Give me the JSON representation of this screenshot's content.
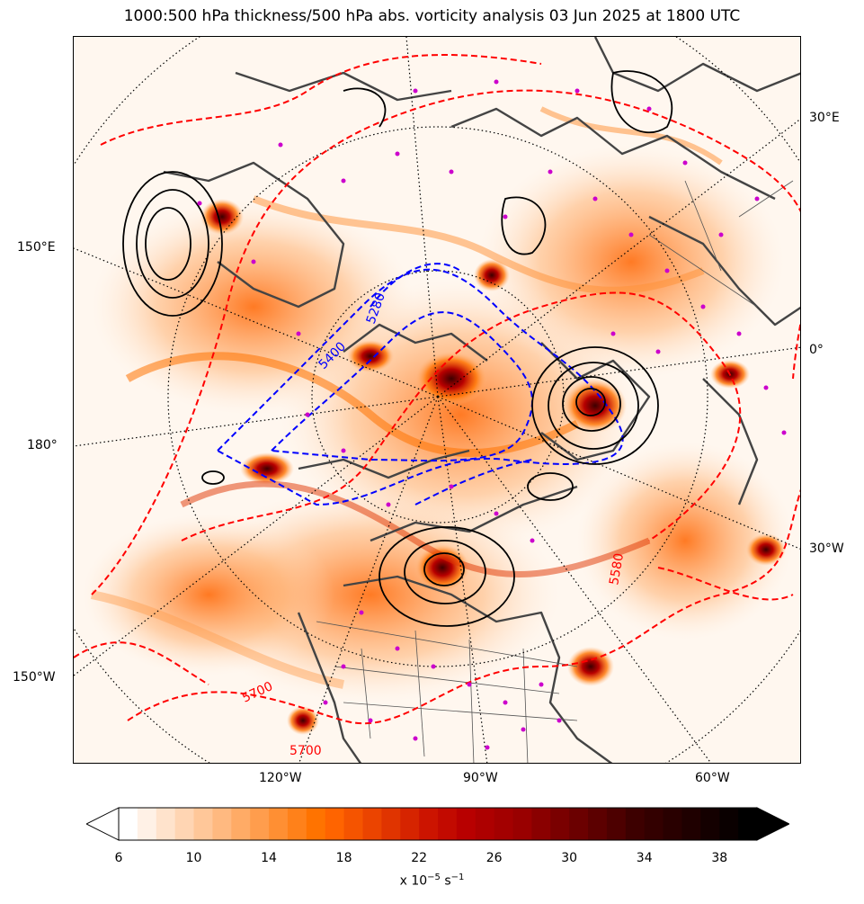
{
  "title": "1000:500 hPa thickness/500 hPa abs. vorticity analysis 03 Jun 2025 at 1800 UTC",
  "map": {
    "projection": "polar stereographic (north)",
    "graticule_style": "dotted black",
    "coastlines": "dark gray",
    "fill_field": "500 hPa absolute vorticity",
    "thickness_contours": [
      {
        "label": "5700",
        "color": "#ff0000",
        "style": "dashed"
      },
      {
        "label": "5700",
        "color": "#ff0000",
        "style": "dashed"
      },
      {
        "label": "5280",
        "color": "#0000ff",
        "style": "dashed"
      },
      {
        "label": "5400",
        "color": "#0000ff",
        "style": "dashed"
      },
      {
        "label": "5580",
        "color": "#ff0000",
        "style": "dashed"
      }
    ],
    "pressure_contours": {
      "color": "#000000",
      "style": "solid"
    },
    "marker_color": "#cc00cc"
  },
  "edge_labels": {
    "lon_30e": "30°E",
    "lon_150e": "150°E",
    "lon_0": "0°",
    "lon_180": "180°",
    "lon_30w": "30°W",
    "lon_150w": "150°W",
    "lon_120w": "120°W",
    "lon_90w": "90°W",
    "lon_60w": "60°W"
  },
  "colorbar": {
    "min": 6,
    "max": 40,
    "extend": "both",
    "ticks": [
      "6",
      "10",
      "14",
      "18",
      "22",
      "26",
      "30",
      "34",
      "38"
    ],
    "units_prefix": "x 10",
    "units_exp": "−5",
    "units_mid": " s",
    "units_exp2": "−1",
    "colors": [
      "#ffffff",
      "#fff1e6",
      "#ffe3cc",
      "#ffd5b3",
      "#ffc799",
      "#ffb980",
      "#ffab66",
      "#ff9d4d",
      "#ff8f33",
      "#ff811a",
      "#ff7300",
      "#ff6400",
      "#f55400",
      "#eb4400",
      "#e03400",
      "#d62400",
      "#cc1400",
      "#c20a00",
      "#b80000",
      "#ad0000",
      "#a30000",
      "#990000",
      "#8a0000",
      "#7a0000",
      "#6b0000",
      "#5c0000",
      "#4d0000",
      "#3d0000",
      "#330000",
      "#290000",
      "#1f0000",
      "#140000",
      "#0a0000",
      "#000000"
    ]
  }
}
